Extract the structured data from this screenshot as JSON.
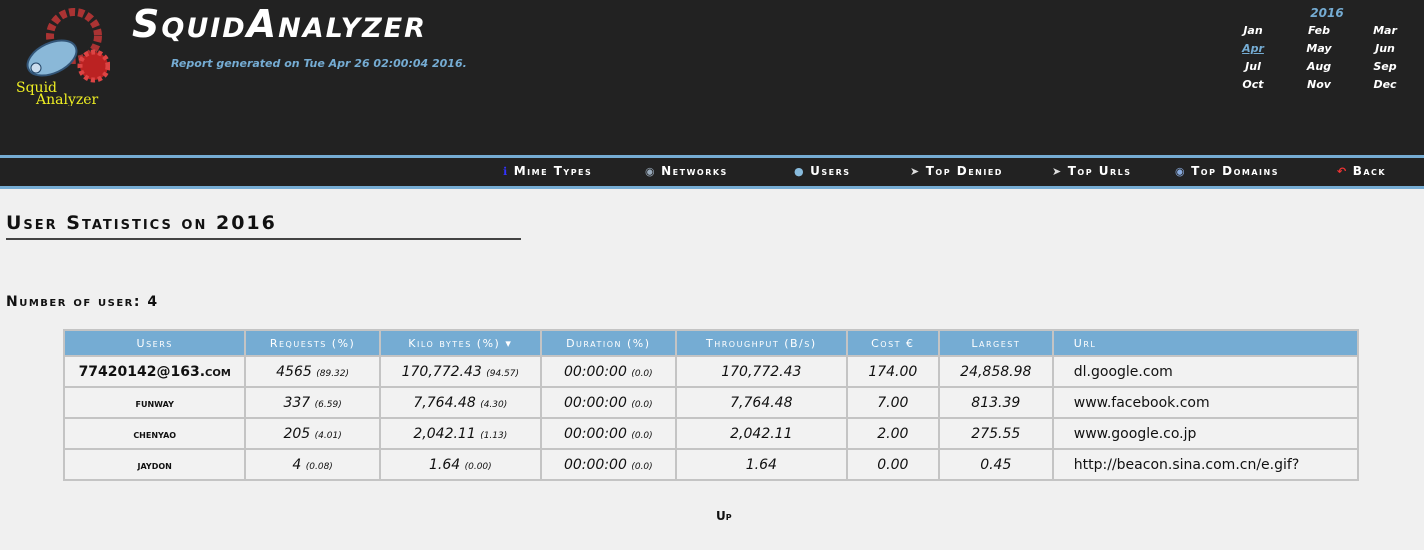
{
  "header": {
    "title": "SquidAnalyzer",
    "logo_text": "Squid Analyzer",
    "generated": "Report generated on Tue Apr 26 02:00:04 2016."
  },
  "calendar": {
    "year": "2016",
    "months": [
      "Jan",
      "Feb",
      "Mar",
      "Apr",
      "May",
      "Jun",
      "Jul",
      "Aug",
      "Sep",
      "Oct",
      "Nov",
      "Dec"
    ],
    "active": "Apr"
  },
  "menu": [
    {
      "label": "Mime Types",
      "icon": "info-icon"
    },
    {
      "label": "Networks",
      "icon": "network-icon"
    },
    {
      "label": "Users",
      "icon": "user-icon"
    },
    {
      "label": "Top Denied",
      "icon": "cursor-icon"
    },
    {
      "label": "Top Urls",
      "icon": "cursor-icon"
    },
    {
      "label": "Top Domains",
      "icon": "globe-icon"
    },
    {
      "label": "Back",
      "icon": "back-arrow-icon"
    }
  ],
  "page_title": "User Statistics on 2016",
  "user_count": "Number of user: 4",
  "table": {
    "headers": [
      "Users",
      "Requests (%)",
      "Kilo bytes (%) ▾",
      "Duration (%)",
      "Throughput (B/s)",
      "Cost €",
      "Largest",
      "Url"
    ],
    "rows": [
      [
        "77420142@163.com",
        "4565",
        "(89.32)",
        "170,772.43",
        "(94.57)",
        "00:00:00",
        "(0.0)",
        "170,772.43",
        "174.00",
        "24,858.98",
        "dl.google.com"
      ],
      [
        "funway",
        "337",
        "(6.59)",
        "7,764.48",
        "(4.30)",
        "00:00:00",
        "(0.0)",
        "7,764.48",
        "7.00",
        "813.39",
        "www.facebook.com"
      ],
      [
        "chenyao",
        "205",
        "(4.01)",
        "2,042.11",
        "(1.13)",
        "00:00:00",
        "(0.0)",
        "2,042.11",
        "2.00",
        "275.55",
        "www.google.co.jp"
      ],
      [
        "jaydon",
        "4",
        "(0.08)",
        "1.64",
        "(0.00)",
        "00:00:00",
        "(0.0)",
        "1.64",
        "0.00",
        "0.45",
        "http://beacon.sina.com.cn/e.gif?"
      ]
    ]
  },
  "up_link": "Up",
  "colors": {
    "accent": "#75acd3",
    "header_bg": "#222222"
  }
}
